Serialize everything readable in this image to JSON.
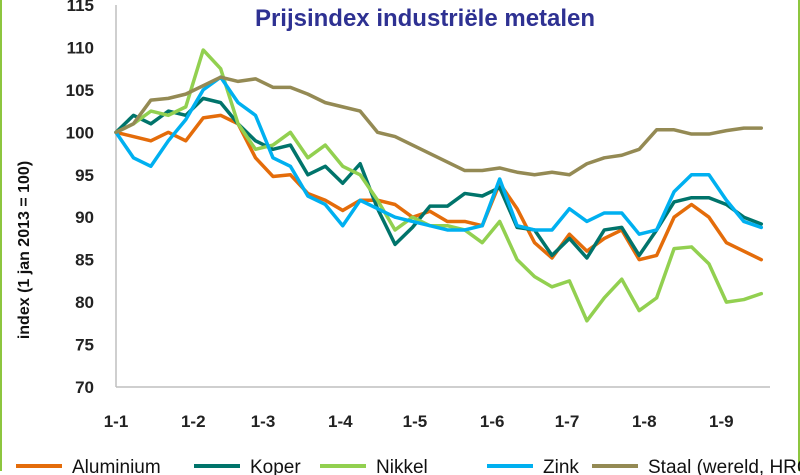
{
  "chart_data": {
    "type": "line",
    "title": "Prijsindex industriële metalen",
    "xlabel": "",
    "ylabel": "index (1 jan 2013 = 100)",
    "ylim": [
      70,
      115
    ],
    "yticks": [
      70,
      75,
      80,
      85,
      90,
      95,
      100,
      105,
      110,
      115
    ],
    "xlim": [
      0,
      37.5
    ],
    "xticks": [
      {
        "label": "1-1",
        "x": 0
      },
      {
        "label": "1-2",
        "x": 4.43
      },
      {
        "label": "1-3",
        "x": 8.43
      },
      {
        "label": "1-4",
        "x": 12.86
      },
      {
        "label": "1-5",
        "x": 17.14
      },
      {
        "label": "1-6",
        "x": 21.57
      },
      {
        "label": "1-7",
        "x": 25.86
      },
      {
        "label": "1-8",
        "x": 30.29
      },
      {
        "label": "1-9",
        "x": 34.71
      }
    ],
    "grid": false,
    "legend": "bottom",
    "series": [
      {
        "name": "Aluminium",
        "color": "#e46c0a",
        "values": [
          100,
          99.5,
          99,
          100,
          99,
          101.7,
          102,
          101,
          97,
          94.8,
          95,
          92.8,
          92,
          90.8,
          92,
          92,
          91.5,
          90,
          90.7,
          89.5,
          89.5,
          89,
          94,
          91,
          87,
          85.2,
          88,
          86,
          87.5,
          88.5,
          85,
          85.5,
          90,
          91.5,
          90,
          87,
          86,
          85
        ]
      },
      {
        "name": "Koper",
        "color": "#00746b",
        "values": [
          100,
          102,
          101,
          102.5,
          102,
          104,
          103.5,
          101,
          99,
          98,
          98.5,
          95,
          96,
          94,
          96.3,
          91,
          86.8,
          88.8,
          91.3,
          91.3,
          92.8,
          92.5,
          93.5,
          88.8,
          88.5,
          85.5,
          87.5,
          85.2,
          88.5,
          88.8,
          85.5,
          88.5,
          91.8,
          92.3,
          92.3,
          91.5,
          90,
          89.2
        ]
      },
      {
        "name": "Nikkel",
        "color": "#92d050",
        "values": [
          100,
          101,
          102.5,
          102,
          103,
          109.7,
          107.5,
          101,
          98,
          98.5,
          100,
          97,
          98.5,
          96,
          95,
          92,
          88.5,
          90,
          89,
          89,
          88.5,
          87,
          89.5,
          85,
          83,
          81.8,
          82.5,
          77.8,
          80.5,
          82.7,
          79,
          80.5,
          86.3,
          86.5,
          84.5,
          80,
          80.3,
          81
        ]
      },
      {
        "name": "Zink",
        "color": "#00b0f0",
        "values": [
          100,
          97,
          96,
          99,
          101.5,
          105,
          106.5,
          103.5,
          102,
          97,
          96,
          92.5,
          91.5,
          89,
          92,
          91,
          90,
          89.5,
          89,
          88.5,
          88.5,
          89,
          94.5,
          89,
          88.5,
          88.5,
          91,
          89.5,
          90.5,
          90.5,
          88,
          88.5,
          93,
          95,
          95,
          92,
          89.5,
          88.8
        ]
      },
      {
        "name": "Staal (wereld, HRC)",
        "color": "#948a54",
        "values": [
          100,
          101,
          103.8,
          104,
          104.5,
          105.5,
          106.5,
          106,
          106.3,
          105.3,
          105.3,
          104.5,
          103.5,
          103,
          102.5,
          100,
          99.5,
          98.5,
          97.5,
          96.5,
          95.5,
          95.5,
          95.8,
          95.3,
          95,
          95.3,
          95,
          96.3,
          97,
          97.3,
          98,
          100.3,
          100.3,
          99.8,
          99.8,
          100.2,
          100.5,
          100.5
        ]
      }
    ]
  }
}
